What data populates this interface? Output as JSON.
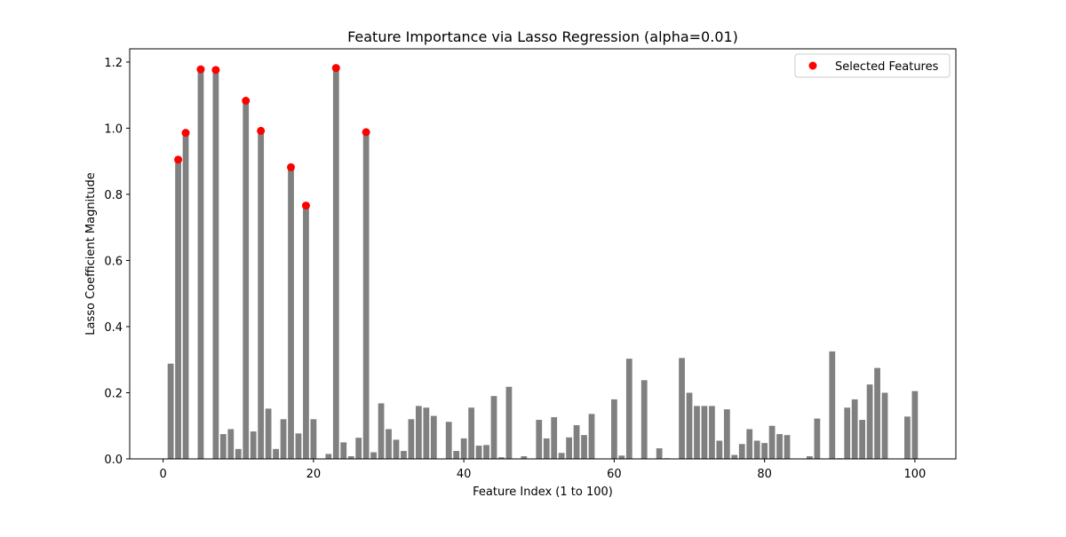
{
  "chart_data": {
    "type": "bar",
    "title": "Feature Importance via Lasso Regression (alpha=0.01)",
    "xlabel": "Feature Index (1 to 100)",
    "ylabel": "Lasso Coefficient Magnitude",
    "xlim": [
      -4.45,
      105.45
    ],
    "ylim": [
      0,
      1.24
    ],
    "xticks": [
      0,
      20,
      40,
      60,
      80,
      100
    ],
    "yticks": [
      0.0,
      0.2,
      0.4,
      0.6,
      0.8,
      1.0,
      1.2
    ],
    "ytick_labels": [
      "0.0",
      "0.2",
      "0.4",
      "0.6",
      "0.8",
      "1.0",
      "1.2"
    ],
    "bar_color": "#808080",
    "marker_color": "#ff0000",
    "grid": false,
    "legend": {
      "position": "upper-right",
      "entries": [
        "Selected Features"
      ]
    },
    "x": [
      1,
      2,
      3,
      4,
      5,
      6,
      7,
      8,
      9,
      10,
      11,
      12,
      13,
      14,
      15,
      16,
      17,
      18,
      19,
      20,
      21,
      22,
      23,
      24,
      25,
      26,
      27,
      28,
      29,
      30,
      31,
      32,
      33,
      34,
      35,
      36,
      37,
      38,
      39,
      40,
      41,
      42,
      43,
      44,
      45,
      46,
      47,
      48,
      49,
      50,
      51,
      52,
      53,
      54,
      55,
      56,
      57,
      58,
      59,
      60,
      61,
      62,
      63,
      64,
      65,
      66,
      67,
      68,
      69,
      70,
      71,
      72,
      73,
      74,
      75,
      76,
      77,
      78,
      79,
      80,
      81,
      82,
      83,
      84,
      85,
      86,
      87,
      88,
      89,
      90,
      91,
      92,
      93,
      94,
      95,
      96,
      97,
      98,
      99,
      100
    ],
    "values": [
      0.288,
      0.905,
      0.986,
      0,
      1.178,
      0,
      1.176,
      0.075,
      0.09,
      0.03,
      1.083,
      0.083,
      0.992,
      0.152,
      0.03,
      0.12,
      0.882,
      0.077,
      0.766,
      0.12,
      0,
      0.015,
      1.182,
      0.05,
      0.008,
      0.064,
      0.988,
      0.02,
      0.168,
      0.09,
      0.058,
      0.024,
      0.12,
      0.16,
      0.155,
      0.13,
      0,
      0.112,
      0.024,
      0.062,
      0.155,
      0.04,
      0.042,
      0.19,
      0.005,
      0.218,
      0,
      0.008,
      0,
      0.118,
      0.062,
      0.126,
      0.018,
      0.065,
      0.102,
      0.072,
      0.136,
      0,
      0,
      0.18,
      0.01,
      0.303,
      0,
      0.238,
      0,
      0.032,
      0.002,
      0,
      0.305,
      0.2,
      0.16,
      0.16,
      0.16,
      0.055,
      0.15,
      0.012,
      0.045,
      0.09,
      0.055,
      0.048,
      0.1,
      0.075,
      0.072,
      0,
      0,
      0.008,
      0.122,
      0,
      0.325,
      0.002,
      0.155,
      0.18,
      0.118,
      0.225,
      0.275,
      0.2,
      0,
      0,
      0.128,
      0.205
    ],
    "selected": [
      {
        "x": 2,
        "y": 0.905
      },
      {
        "x": 3,
        "y": 0.986
      },
      {
        "x": 5,
        "y": 1.178
      },
      {
        "x": 7,
        "y": 1.176
      },
      {
        "x": 11,
        "y": 1.083
      },
      {
        "x": 13,
        "y": 0.992
      },
      {
        "x": 17,
        "y": 0.882
      },
      {
        "x": 19,
        "y": 0.766
      },
      {
        "x": 23,
        "y": 1.182
      },
      {
        "x": 27,
        "y": 0.988
      }
    ]
  }
}
